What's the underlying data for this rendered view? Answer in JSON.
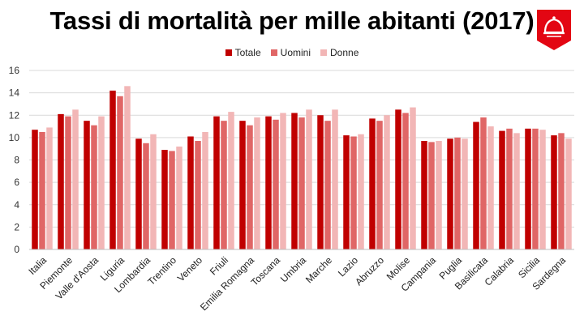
{
  "title": "Tassi di mortalità per mille abitanti (2017)",
  "logo": {
    "icon": "bell-icon",
    "color": "#e30613"
  },
  "colors": {
    "Totale": "#c00000",
    "Uomini": "#e06666",
    "Donne": "#f2b6b6"
  },
  "chart_data": {
    "type": "bar",
    "title": "Tassi di mortalità per mille abitanti (2017)",
    "xlabel": "",
    "ylabel": "",
    "ylim": [
      0,
      16
    ],
    "yticks": [
      0,
      2,
      4,
      6,
      8,
      10,
      12,
      14,
      16
    ],
    "grid": true,
    "legend_position": "top-center",
    "categories": [
      "Italia",
      "Piemonte",
      "Valle d'Aosta",
      "Liguria",
      "Lombardia",
      "Trentino",
      "Veneto",
      "Friuli",
      "Emilia Romagna",
      "Toscana",
      "Umbria",
      "Marche",
      "Lazio",
      "Abruzzo",
      "Molise",
      "Campania",
      "Puglia",
      "Basilicata",
      "Calabria",
      "Sicilia",
      "Sardegna"
    ],
    "series": [
      {
        "name": "Totale",
        "values": [
          10.7,
          12.1,
          11.5,
          14.2,
          9.9,
          8.9,
          10.1,
          11.9,
          11.5,
          11.9,
          12.2,
          12.0,
          10.2,
          11.7,
          12.5,
          9.7,
          9.9,
          11.4,
          10.6,
          10.8,
          10.2
        ]
      },
      {
        "name": "Uomini",
        "values": [
          10.5,
          11.9,
          11.1,
          13.7,
          9.5,
          8.8,
          9.7,
          11.5,
          11.1,
          11.6,
          11.8,
          11.5,
          10.1,
          11.5,
          12.2,
          9.6,
          10.0,
          11.8,
          10.8,
          10.8,
          10.4
        ]
      },
      {
        "name": "Donne",
        "values": [
          10.9,
          12.5,
          11.9,
          14.6,
          10.3,
          9.2,
          10.5,
          12.3,
          11.8,
          12.2,
          12.5,
          12.5,
          10.3,
          12.0,
          12.7,
          9.7,
          9.9,
          11.0,
          10.4,
          10.7,
          9.9
        ]
      }
    ]
  }
}
